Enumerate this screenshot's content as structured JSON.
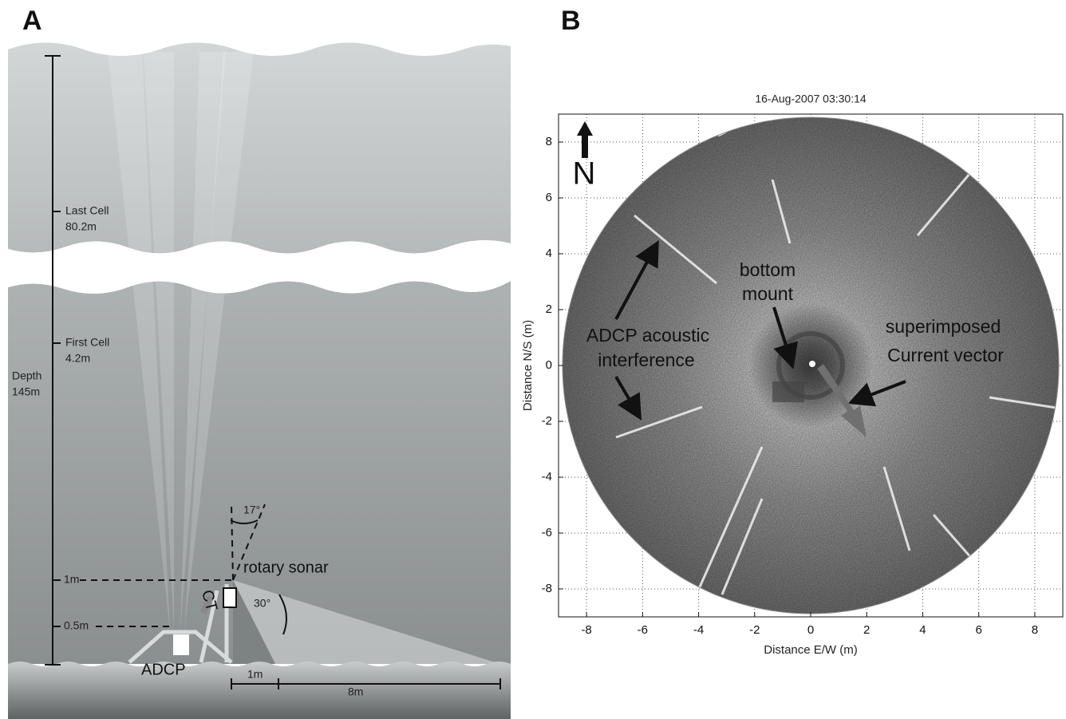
{
  "panel_a": {
    "label": "A",
    "last_cell_label": "Last Cell",
    "last_cell_depth": "80.2m",
    "first_cell_label": "First Cell",
    "first_cell_depth": "4.2m",
    "depth_label": "Depth",
    "depth_value": "145m",
    "height_1m": "1m",
    "height_05m": "0.5m",
    "rotary_sonar": "rotary sonar",
    "angle_17": "17°",
    "angle_30": "30°",
    "ct": "CT",
    "adcp": "ADCP",
    "dist_1m": "1m",
    "dist_8m": "8m"
  },
  "panel_b": {
    "label": "B",
    "title": "16-Aug-2007 03:30:14",
    "x_label": "Distance E/W (m)",
    "y_label": "Distance N/S (m)",
    "xlim": [
      -9,
      9
    ],
    "ylim": [
      -9,
      9
    ],
    "xticks": [
      -8,
      -6,
      -4,
      -2,
      0,
      2,
      4,
      6,
      8
    ],
    "yticks": [
      -8,
      -6,
      -4,
      -2,
      0,
      2,
      4,
      6,
      8
    ],
    "grid": true,
    "annotations": {
      "adcp_1": "ADCP acoustic",
      "adcp_2": "interference",
      "mount_1": "bottom",
      "mount_2": "mount",
      "current_1": "superimposed",
      "current_2": "Current vector",
      "north": "N"
    }
  }
}
